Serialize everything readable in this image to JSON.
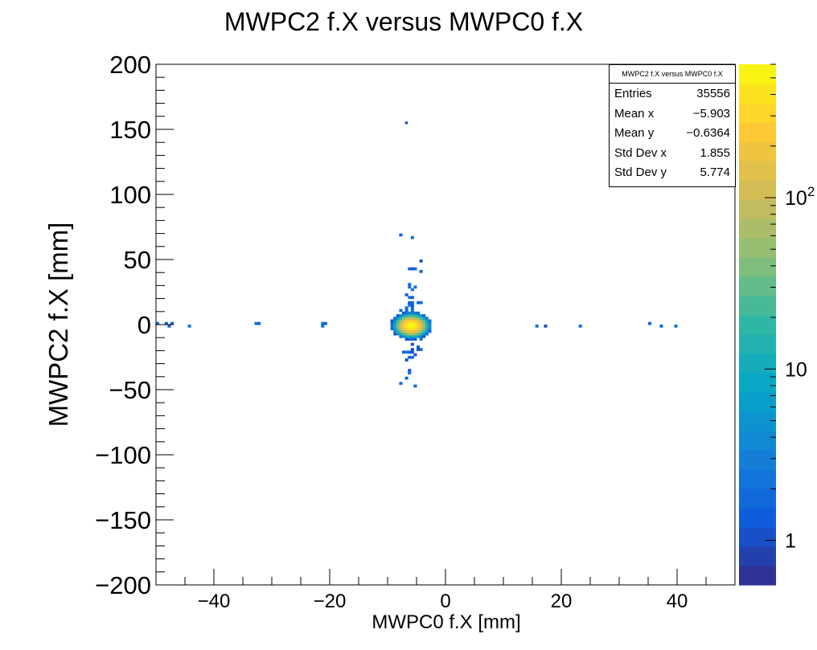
{
  "chart_data": {
    "type": "heatmap",
    "title": "MWPC2 f.X versus MWPC0 f.X",
    "xlabel": "MWPC0 f.X [mm]",
    "ylabel": "MWPC2 f.X [mm]",
    "xlim": [
      -50,
      50
    ],
    "ylim": [
      -200,
      200
    ],
    "x_ticks": [
      "−40",
      "−20",
      "0",
      "20",
      "40"
    ],
    "x_tick_values": [
      -40,
      -20,
      0,
      20,
      40
    ],
    "y_ticks": [
      "−200",
      "−150",
      "−100",
      "−50",
      "0",
      "50",
      "100",
      "150",
      "200"
    ],
    "y_tick_values": [
      -200,
      -150,
      -100,
      -50,
      0,
      50,
      100,
      150,
      200
    ],
    "colorbar": {
      "scale": "log",
      "range": [
        0.55,
        600
      ],
      "ticks": [
        {
          "label": "1",
          "value": 1
        },
        {
          "label": "10",
          "value": 10
        },
        {
          "label": "10",
          "sup": "2",
          "value": 100
        }
      ]
    },
    "peak": {
      "x": -5.9,
      "y": -0.64,
      "sx": 1.0,
      "sy": 3.0
    },
    "horizontal_band": {
      "y": 0,
      "x_range": [
        -50,
        50
      ]
    },
    "vertical_band": {
      "x": -6,
      "y_range": [
        -95,
        85
      ]
    },
    "stats": {
      "title": "MWPC2 f.X versus MWPC0 f.X",
      "rows": [
        {
          "label": "Entries",
          "value": "35556"
        },
        {
          "label": "Mean x",
          "value": "−5.903"
        },
        {
          "label": "Mean y",
          "value": "−0.6364"
        },
        {
          "label": "Std Dev x",
          "value": "1.855"
        },
        {
          "label": "Std Dev y",
          "value": "5.774"
        }
      ]
    }
  }
}
